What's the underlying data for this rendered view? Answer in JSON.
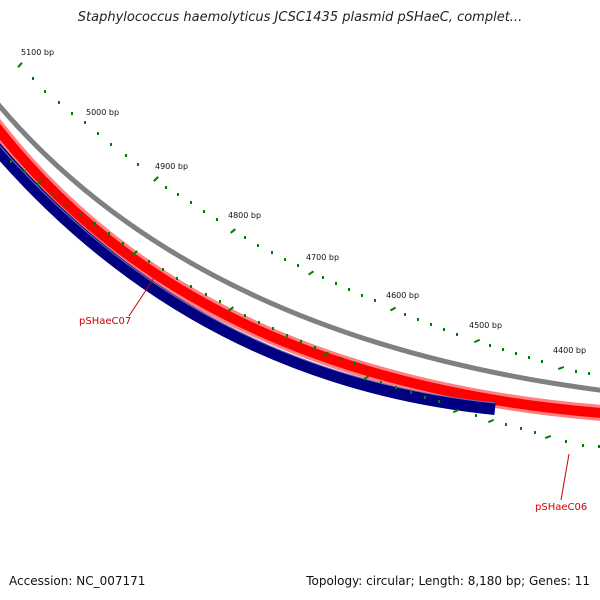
{
  "title": "Staphylococcus haemolyticus JCSC1435 plasmid pSHaeC, complet...",
  "footer": {
    "accession": "Accession: NC_007171",
    "summary": "Topology: circular; Length: 8,180 bp; Genes: 11"
  },
  "scale_labels": [
    "5100 bp",
    "5000 bp",
    "4900 bp",
    "4800 bp",
    "4700 bp",
    "4600 bp",
    "4500 bp",
    "4400 bp"
  ],
  "genes": [
    {
      "name": "pSHaeC07",
      "color": "#cc0000"
    },
    {
      "name": "pSHaeC06",
      "color": "#cc0000"
    }
  ],
  "colors": {
    "backbone": "#808080",
    "forward_strand": "#ff0000",
    "reverse_strand": "#000080",
    "ticks": "#008000"
  }
}
